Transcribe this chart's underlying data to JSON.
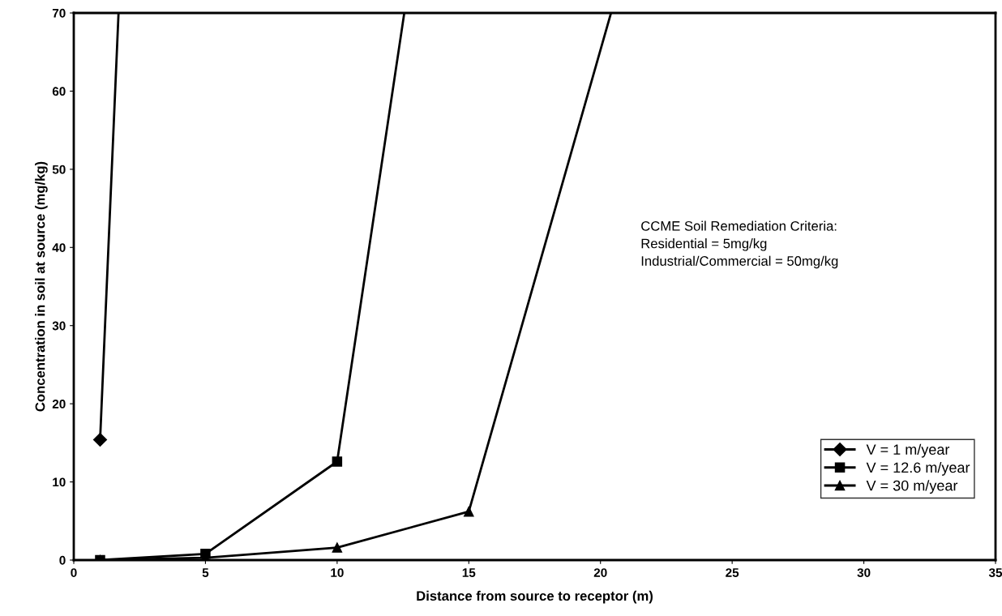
{
  "chart_data": {
    "type": "line",
    "xlabel": "Distance from source to receptor (m)",
    "ylabel": "Concentration in soil at source (mg/kg)",
    "xlim": [
      0,
      35
    ],
    "xticks": [
      0,
      5,
      10,
      15,
      20,
      25,
      30,
      35
    ],
    "ylim": [
      0,
      70
    ],
    "yticks": [
      0,
      10,
      20,
      30,
      40,
      50,
      60,
      70
    ],
    "series": [
      {
        "name": "V = 1 m/year",
        "color": "#000000",
        "marker": "diamond",
        "x": [
          1,
          1.7
        ],
        "values": [
          15.4,
          70
        ]
      },
      {
        "name": "V = 12.6 m/year",
        "color": "#000000",
        "marker": "square",
        "x": [
          1,
          5,
          10,
          12.55
        ],
        "values": [
          0,
          0.8,
          12.6,
          70
        ]
      },
      {
        "name": "V = 30 m/year",
        "color": "#000000",
        "marker": "triangle",
        "x": [
          1,
          5,
          10,
          15,
          20.4
        ],
        "values": [
          0,
          0.3,
          1.6,
          6.2,
          70
        ]
      }
    ],
    "annotations": [
      "CCME Soil Remediation Criteria:\nResidential = 5mg/kg\nIndustrial/Commercial = 50mg/kg"
    ],
    "legend": "bottom right",
    "grid": false,
    "line_style": "solid"
  }
}
